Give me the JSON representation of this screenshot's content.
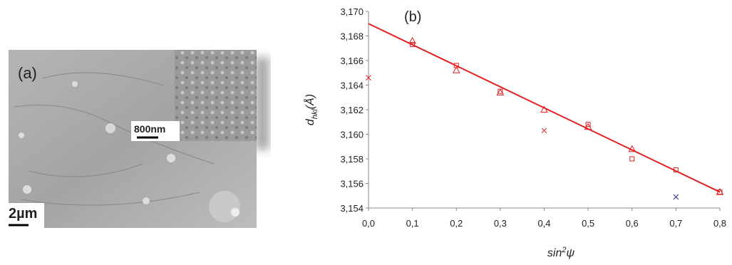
{
  "image": {
    "panel_label": "(a)",
    "inset_scale": "800nm",
    "main_scale": "2µm"
  },
  "chart_data": {
    "type": "scatter",
    "title": "(b)",
    "xlabel": {
      "text": "sin",
      "superscript": "2",
      "symbol": "ψ"
    },
    "ylabel": {
      "symbol": "d",
      "subscript": "hkl",
      "unit": "(Å)"
    },
    "xlim": [
      0,
      0.8
    ],
    "xticks": [
      {
        "value": 0,
        "label": "0,0"
      },
      {
        "value": 0.1,
        "label": "0,1"
      },
      {
        "value": 0.2,
        "label": "0,2"
      },
      {
        "value": 0.3,
        "label": "0,3"
      },
      {
        "value": 0.4,
        "label": "0,4"
      },
      {
        "value": 0.5,
        "label": "0,5"
      },
      {
        "value": 0.6,
        "label": "0,6"
      },
      {
        "value": 0.7,
        "label": "0,7"
      },
      {
        "value": 0.8,
        "label": "0,8"
      }
    ],
    "ylim": [
      3.154,
      3.17
    ],
    "yticks": [
      {
        "value": 3.154,
        "label": "3,154"
      },
      {
        "value": 3.156,
        "label": "3,156"
      },
      {
        "value": 3.158,
        "label": "3,158"
      },
      {
        "value": 3.16,
        "label": "3,160"
      },
      {
        "value": 3.162,
        "label": "3,162"
      },
      {
        "value": 3.164,
        "label": "3,164"
      },
      {
        "value": 3.166,
        "label": "3,166"
      },
      {
        "value": 3.168,
        "label": "3,168"
      },
      {
        "value": 3.17,
        "label": "3,170"
      }
    ],
    "series": [
      {
        "marker": "triangle",
        "color": "#e02020",
        "x": [
          0.1,
          0.2,
          0.3,
          0.4,
          0.5,
          0.6,
          0.8
        ],
        "values": [
          3.1676,
          3.1652,
          3.1634,
          3.162,
          3.1606,
          3.1588,
          3.1553
        ]
      },
      {
        "marker": "square",
        "color": "#e02020",
        "x": [
          0.1,
          0.2,
          0.3,
          0.5,
          0.6,
          0.7,
          0.8
        ],
        "values": [
          3.1673,
          3.1656,
          3.1635,
          3.1608,
          3.158,
          3.1571,
          3.1553
        ]
      },
      {
        "marker": "cross",
        "color": "#e02020",
        "x": [
          0,
          0.4
        ],
        "values": [
          3.1646,
          3.1603
        ]
      },
      {
        "marker": "cross",
        "color": "#2a2a8c",
        "x": [
          0.7
        ],
        "values": [
          3.1549
        ]
      },
      {
        "marker": "line",
        "color": "#e02020",
        "x": [
          0,
          0.8
        ],
        "values": [
          3.169,
          3.1553
        ]
      }
    ]
  }
}
